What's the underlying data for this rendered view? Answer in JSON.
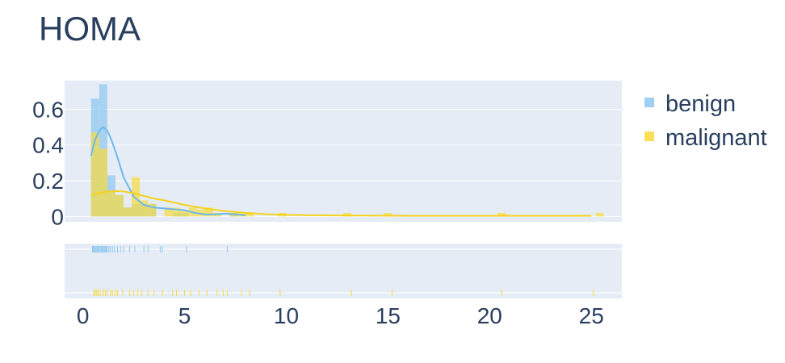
{
  "chart_data": {
    "type": "histogram",
    "title": "HOMA",
    "histnorm": "probability density",
    "bin_size": 0.4,
    "bins_start": 0.4,
    "x_range": [
      -0.9,
      26.5
    ],
    "x_ticks": [
      0,
      5,
      10,
      15,
      20,
      25
    ],
    "y_range": [
      -0.03,
      0.76
    ],
    "y_ticks": [
      0,
      0.2,
      0.4,
      0.6
    ],
    "y_tick_labels": [
      "0",
      "0.2",
      "0.4",
      "0.6"
    ],
    "grid": true,
    "legend_position": "top-right",
    "series": [
      {
        "name": "benign",
        "color": "#8ec7f0",
        "line_color": "#6cb9ec",
        "hist_density": [
          0.66,
          0.74,
          0.23,
          0.12,
          0.05,
          0.07,
          0.07,
          0.07,
          0.0,
          0.0,
          0.02,
          0.02,
          0.0,
          0.0,
          0.0,
          0.0,
          0.0,
          0.02
        ],
        "kde": {
          "x": [
            0.4,
            0.6,
            0.8,
            1.0,
            1.2,
            1.4,
            1.7,
            2.0,
            2.5,
            3.0,
            3.5,
            4.0,
            4.5,
            5.0,
            5.5,
            6.0,
            6.5,
            7.0,
            7.5,
            8.0
          ],
          "y": [
            0.34,
            0.43,
            0.48,
            0.5,
            0.48,
            0.43,
            0.33,
            0.22,
            0.11,
            0.065,
            0.05,
            0.045,
            0.04,
            0.035,
            0.02,
            0.012,
            0.012,
            0.016,
            0.012,
            0.006
          ]
        },
        "rug": [
          0.47,
          0.52,
          0.55,
          0.6,
          0.65,
          0.7,
          0.74,
          0.8,
          0.85,
          0.9,
          0.95,
          1.0,
          1.05,
          1.1,
          1.15,
          1.2,
          1.28,
          1.35,
          1.45,
          1.55,
          1.7,
          1.85,
          2.0,
          2.3,
          2.55,
          3.0,
          3.2,
          3.8,
          3.9,
          5.1,
          7.1
        ]
      },
      {
        "name": "malignant",
        "color": "#f9db3c",
        "line_color": "#f5d21c",
        "hist_density": [
          0.47,
          0.38,
          0.14,
          0.12,
          0.05,
          0.22,
          0.09,
          0.07,
          0.0,
          0.05,
          0.05,
          0.03,
          0.05,
          0.04,
          0.05,
          0.02,
          0.0,
          0.02
        ],
        "extra_bars": [
          {
            "x0": 7.6,
            "x1": 8.4,
            "y": 0.02
          },
          {
            "x0": 9.6,
            "x1": 10.0,
            "y": 0.02
          },
          {
            "x0": 12.8,
            "x1": 13.2,
            "y": 0.02
          },
          {
            "x0": 14.8,
            "x1": 15.2,
            "y": 0.02
          },
          {
            "x0": 20.4,
            "x1": 20.8,
            "y": 0.02
          },
          {
            "x0": 25.2,
            "x1": 25.6,
            "y": 0.02
          }
        ],
        "kde": {
          "x": [
            0.4,
            1.0,
            1.5,
            2.0,
            2.5,
            3.0,
            3.5,
            4.0,
            5.0,
            6.0,
            7.0,
            8.0,
            9.0,
            10.0,
            11.0,
            12.0,
            14.0,
            16.0,
            18.0,
            20.0,
            22.0,
            24.0,
            25.0
          ],
          "y": [
            0.12,
            0.135,
            0.142,
            0.14,
            0.13,
            0.115,
            0.1,
            0.09,
            0.065,
            0.045,
            0.03,
            0.02,
            0.013,
            0.009,
            0.007,
            0.006,
            0.005,
            0.004,
            0.004,
            0.004,
            0.004,
            0.004,
            0.004
          ]
        },
        "rug": [
          0.55,
          0.6,
          0.68,
          0.75,
          0.85,
          1.0,
          1.1,
          1.2,
          1.35,
          1.45,
          1.6,
          1.7,
          1.95,
          2.3,
          2.5,
          2.7,
          2.9,
          3.2,
          3.5,
          3.9,
          4.4,
          4.6,
          5.0,
          5.3,
          5.7,
          6.1,
          6.6,
          6.9,
          7.1,
          7.8,
          8.2,
          9.7,
          13.2,
          15.2,
          20.6,
          25.1
        ]
      }
    ]
  }
}
